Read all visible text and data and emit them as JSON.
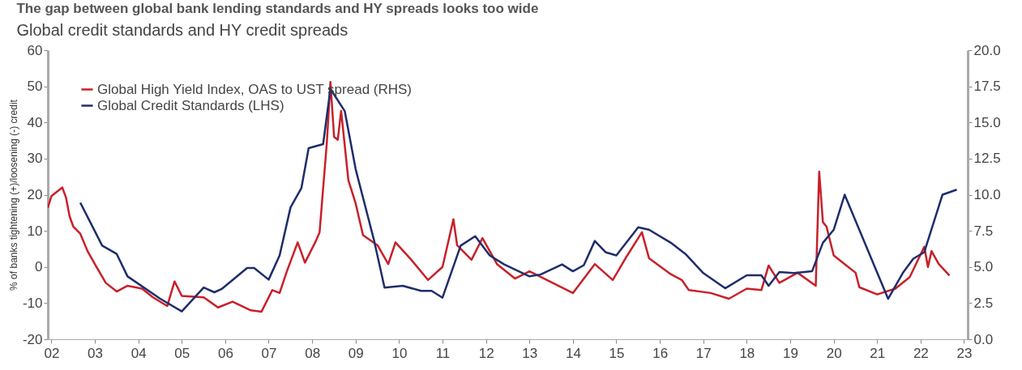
{
  "chart_data": {
    "type": "line",
    "title": "The gap between global bank lending standards and HY spreads looks too wide",
    "subtitle": "Global credit standards and HY credit spreads",
    "ylabel": "% of banks tightening (+)/loosening (-) credit",
    "xlim": [
      "2002-06",
      "2023-08"
    ],
    "xticks": [
      {
        "value": "2002-07",
        "label": "02"
      },
      {
        "value": "2003-07",
        "label": "03"
      },
      {
        "value": "2004-07",
        "label": "04"
      },
      {
        "value": "2005-07",
        "label": "05"
      },
      {
        "value": "2006-07",
        "label": "06"
      },
      {
        "value": "2007-07",
        "label": "07"
      },
      {
        "value": "2008-07",
        "label": "08"
      },
      {
        "value": "2009-07",
        "label": "09"
      },
      {
        "value": "2010-07",
        "label": "10"
      },
      {
        "value": "2011-07",
        "label": "11"
      },
      {
        "value": "2012-07",
        "label": "12"
      },
      {
        "value": "2013-07",
        "label": "13"
      },
      {
        "value": "2014-07",
        "label": "14"
      },
      {
        "value": "2015-07",
        "label": "15"
      },
      {
        "value": "2016-07",
        "label": "16"
      },
      {
        "value": "2017-07",
        "label": "17"
      },
      {
        "value": "2018-07",
        "label": "18"
      },
      {
        "value": "2019-07",
        "label": "19"
      },
      {
        "value": "2020-07",
        "label": "20"
      },
      {
        "value": "2021-07",
        "label": "21"
      },
      {
        "value": "2022-07",
        "label": "22"
      },
      {
        "value": "2023-07",
        "label": "23"
      }
    ],
    "ylim": [
      -20,
      60
    ],
    "yticks": [
      -20,
      -10,
      0,
      10,
      20,
      30,
      40,
      50,
      60
    ],
    "y2lim": [
      0,
      20
    ],
    "y2ticks": [
      {
        "value": 0,
        "label": "0.0"
      },
      {
        "value": 2.5,
        "label": "2.5"
      },
      {
        "value": 5,
        "label": "5.0"
      },
      {
        "value": 7.5,
        "label": "7.5"
      },
      {
        "value": 10,
        "label": "10.0"
      },
      {
        "value": 12.5,
        "label": "12.5"
      },
      {
        "value": 15,
        "label": "15.0"
      },
      {
        "value": 17.5,
        "label": "17.5"
      },
      {
        "value": 20,
        "label": "20.0"
      }
    ],
    "grid": false,
    "legend": "top left",
    "series": [
      {
        "name": "Global High Yield Index, OAS to UST spread (RHS)",
        "color": "#c8202a",
        "axis": "y2",
        "x": [
          "2002-06",
          "2002-07",
          "2002-10",
          "2002-11",
          "2002-12",
          "2003-01",
          "2003-03",
          "2003-05",
          "2003-07",
          "2003-10",
          "2004-01",
          "2004-04",
          "2004-08",
          "2004-11",
          "2005-03",
          "2005-05",
          "2005-07",
          "2006-01",
          "2006-05",
          "2006-09",
          "2007-02",
          "2007-05",
          "2007-08",
          "2007-10",
          "2007-12",
          "2008-03",
          "2008-05",
          "2008-08",
          "2008-09",
          "2008-11",
          "2008-12",
          "2009-01",
          "2009-02",
          "2009-03",
          "2009-05",
          "2009-07",
          "2009-09",
          "2010-01",
          "2010-04",
          "2010-06",
          "2010-10",
          "2011-03",
          "2011-07",
          "2011-10",
          "2011-11",
          "2012-03",
          "2012-06",
          "2012-10",
          "2013-03",
          "2013-07",
          "2013-11",
          "2014-07",
          "2015-01",
          "2015-06",
          "2015-10",
          "2016-02",
          "2016-04",
          "2016-10",
          "2017-01",
          "2017-03",
          "2017-09",
          "2018-02",
          "2018-07",
          "2018-11",
          "2019-01",
          "2019-04",
          "2019-09",
          "2020-02",
          "2020-03",
          "2020-04",
          "2020-05",
          "2020-07",
          "2020-10",
          "2021-01",
          "2021-02",
          "2021-07",
          "2021-12",
          "2022-04",
          "2022-08",
          "2022-09",
          "2022-10",
          "2022-12",
          "2023-03"
        ],
        "values": [
          9.1,
          9.9,
          10.5,
          9.8,
          8.5,
          7.8,
          7.3,
          6.1,
          5.2,
          3.9,
          3.3,
          3.7,
          3.5,
          2.9,
          2.3,
          4.0,
          3.0,
          2.9,
          2.2,
          2.6,
          2.0,
          1.9,
          3.4,
          3.2,
          4.7,
          6.7,
          5.3,
          6.8,
          7.4,
          13.6,
          17.8,
          14.0,
          13.8,
          15.8,
          11.0,
          9.4,
          7.2,
          6.5,
          5.2,
          6.7,
          5.6,
          4.1,
          5.0,
          8.3,
          6.5,
          5.5,
          7.0,
          5.2,
          4.2,
          4.7,
          4.2,
          3.2,
          5.2,
          4.1,
          5.8,
          7.4,
          5.6,
          4.5,
          4.1,
          3.4,
          3.2,
          2.8,
          3.5,
          3.4,
          5.1,
          3.9,
          4.6,
          3.7,
          11.6,
          8.1,
          7.8,
          5.8,
          5.2,
          4.6,
          3.6,
          3.1,
          3.5,
          4.3,
          6.4,
          5.0,
          6.1,
          5.2,
          4.4
        ]
      },
      {
        "name": "Global Credit Standards (LHS)",
        "color": "#1f2d6b",
        "x": [
          "2003-03",
          "2003-09",
          "2004-01",
          "2004-04",
          "2005-01",
          "2005-07",
          "2006-01",
          "2006-04",
          "2006-06",
          "2007-01",
          "2007-03",
          "2007-07",
          "2007-10",
          "2008-01",
          "2008-04",
          "2008-06",
          "2008-10",
          "2008-12",
          "2009-04",
          "2009-07",
          "2009-12",
          "2010-03",
          "2010-08",
          "2011-01",
          "2011-04",
          "2011-07",
          "2011-12",
          "2012-04",
          "2012-08",
          "2012-12",
          "2013-07",
          "2013-10",
          "2014-04",
          "2014-07",
          "2014-10",
          "2015-01",
          "2015-04",
          "2015-07",
          "2016-01",
          "2016-04",
          "2016-10",
          "2017-02",
          "2017-07",
          "2018-01",
          "2018-07",
          "2018-11",
          "2019-01",
          "2019-04",
          "2019-08",
          "2020-01",
          "2020-04",
          "2020-07",
          "2020-10",
          "2021-10",
          "2022-02",
          "2022-05",
          "2022-08",
          "2023-01",
          "2023-05"
        ],
        "values": [
          17.8,
          5.9,
          3.6,
          -2.6,
          -8.8,
          -12.3,
          -5.7,
          -7.0,
          -6.1,
          -0.3,
          -0.3,
          -3.5,
          3.2,
          16.5,
          21.8,
          32.9,
          34,
          49.3,
          43.1,
          27.1,
          7.6,
          -5.7,
          -5.2,
          -6.6,
          -6.6,
          -8.5,
          5.9,
          8.5,
          3.2,
          0.7,
          -2.6,
          -2.1,
          0.7,
          -1.2,
          0.5,
          7.2,
          4.1,
          3.2,
          11,
          10.3,
          6.7,
          3.6,
          -1.7,
          -5.9,
          -2.3,
          -2.3,
          -5.2,
          -1.4,
          -1.7,
          -1.2,
          6.7,
          10.3,
          20,
          -8.8,
          -1.7,
          2.3,
          4.1,
          20,
          21.4
        ]
      }
    ]
  }
}
